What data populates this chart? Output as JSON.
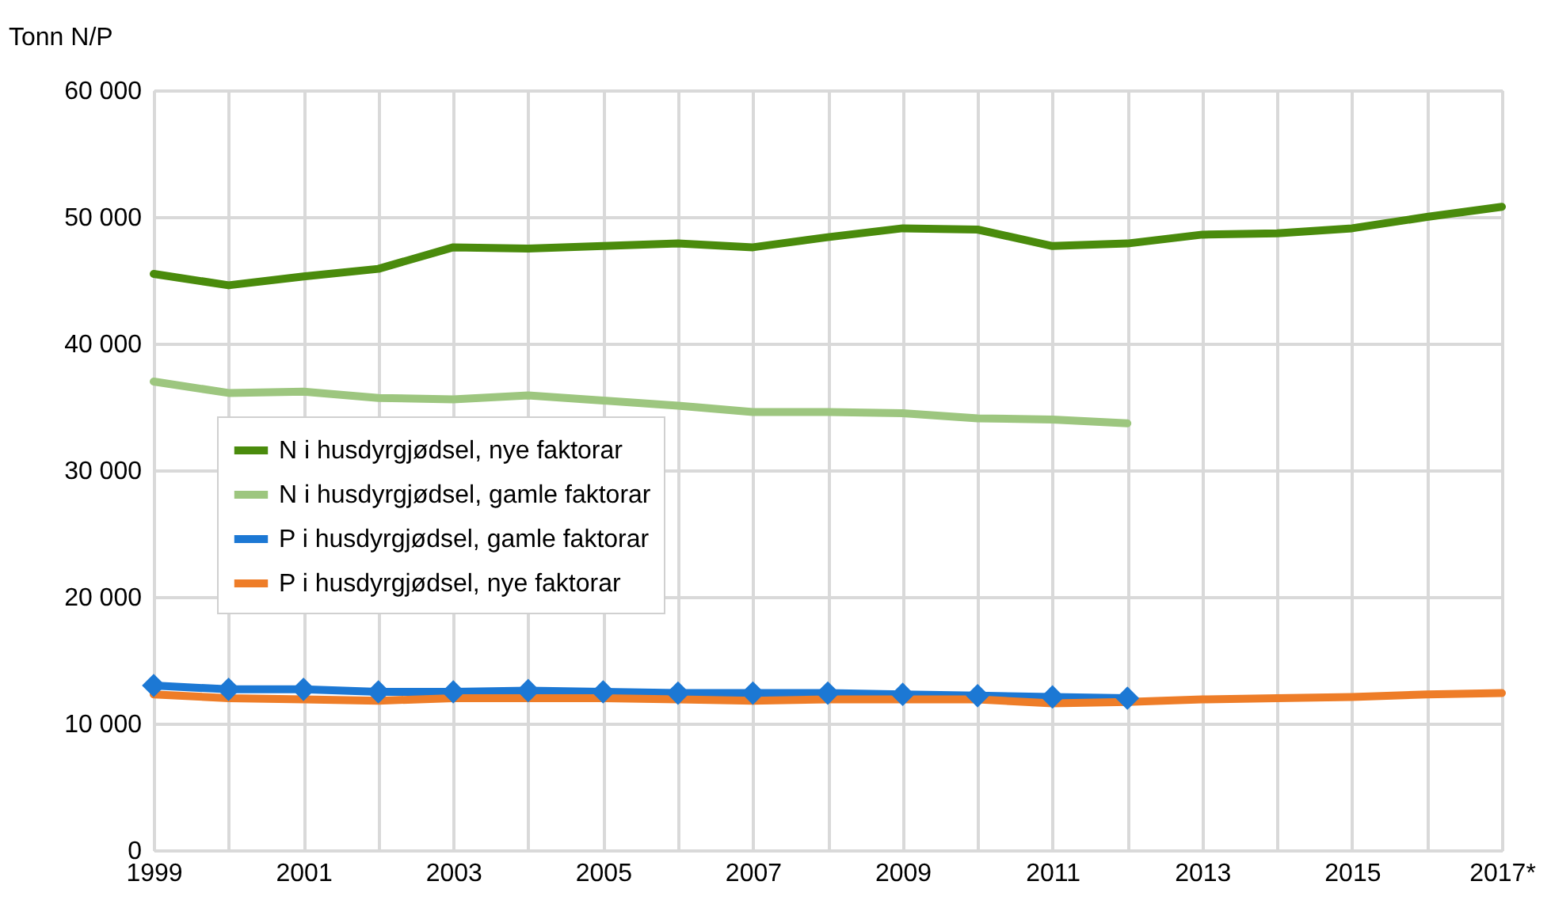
{
  "chart_data": {
    "type": "line",
    "ylabel": "Tonn N/P",
    "categories": [
      "1999",
      null,
      "2001",
      null,
      "2003",
      null,
      "2005",
      null,
      "2007",
      null,
      "2009",
      null,
      "2011",
      null,
      "2013",
      null,
      "2015",
      null,
      "2017*"
    ],
    "ylim": [
      0,
      60000
    ],
    "yticks": [
      {
        "value": 0,
        "label": "0"
      },
      {
        "value": 10000,
        "label": "10 000"
      },
      {
        "value": 20000,
        "label": "20 000"
      },
      {
        "value": 30000,
        "label": "30 000"
      },
      {
        "value": 40000,
        "label": "40 000"
      },
      {
        "value": 50000,
        "label": "50 000"
      },
      {
        "value": 60000,
        "label": "60 000"
      }
    ],
    "grid": true,
    "legend": "left",
    "line_style": "solid",
    "series": [
      {
        "name": "N i husdyrgjødsel, nye faktorar",
        "color": "#4a8b0c",
        "marker": "none",
        "values": [
          45500,
          44600,
          45300,
          45900,
          47600,
          47500,
          47700,
          47900,
          47600,
          48400,
          49100,
          49000,
          47700,
          47900,
          48600,
          48700,
          49100,
          50000,
          50800
        ]
      },
      {
        "name": "N i husdyrgjødsel, gamle faktorar",
        "color": "#9dc67f",
        "marker": "none",
        "values": [
          37000,
          36100,
          36200,
          35700,
          35600,
          35900,
          35500,
          35100,
          34600,
          34600,
          34500,
          34100,
          34000,
          33700,
          null,
          null,
          null,
          null,
          null
        ]
      },
      {
        "name": "P i husdyrgjødsel, gamle faktorar",
        "color": "#1c78d4",
        "marker": "diamond",
        "values": [
          13000,
          12700,
          12700,
          12500,
          12500,
          12600,
          12500,
          12400,
          12400,
          12400,
          12300,
          12200,
          12100,
          12000,
          null,
          null,
          null,
          null,
          null
        ]
      },
      {
        "name": "P i husdyrgjødsel, nye faktorar",
        "color": "#ee7d28",
        "marker": "none",
        "values": [
          12300,
          12000,
          11900,
          11800,
          12000,
          12000,
          12000,
          11900,
          11800,
          11900,
          11900,
          11900,
          11600,
          11700,
          11900,
          12000,
          12100,
          12300,
          12400
        ]
      }
    ]
  }
}
